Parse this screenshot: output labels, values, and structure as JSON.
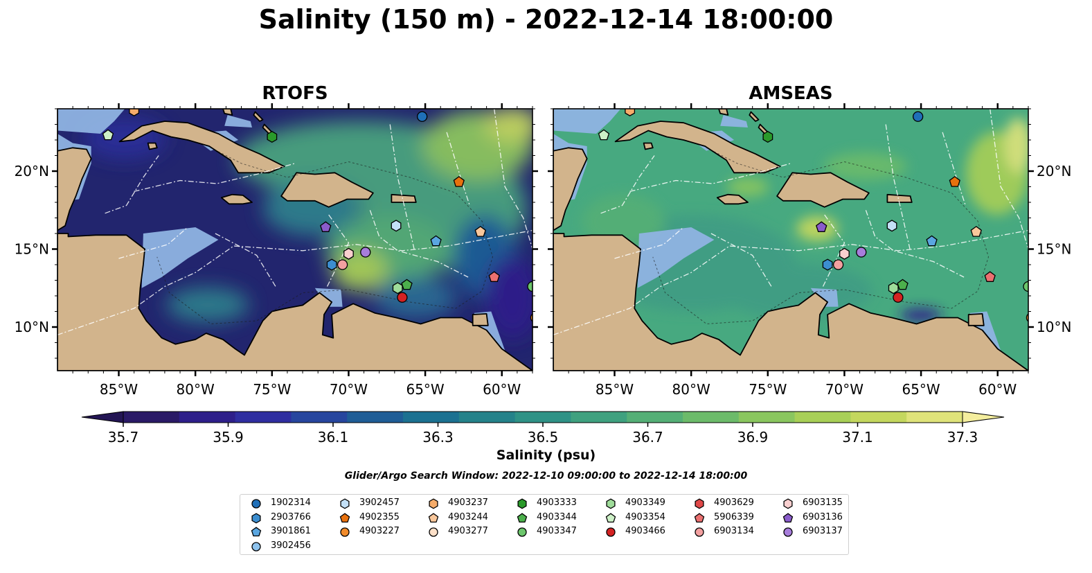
{
  "title": "Salinity (150 m) - 2022-12-14 18:00:00",
  "panels": [
    {
      "title": "RTOFS",
      "ocean_base": "#1e2d8a"
    },
    {
      "title": "AMSEAS",
      "ocean_base": "#4bb07f"
    }
  ],
  "x_ticks": [
    "85°W",
    "80°W",
    "75°W",
    "70°W",
    "65°W",
    "60°W"
  ],
  "y_ticks": [
    "20°N",
    "15°N",
    "10°N"
  ],
  "colorbar": {
    "label": "Salinity (psu)",
    "ticks": [
      "35.7",
      "35.9",
      "36.1",
      "36.3",
      "36.5",
      "36.7",
      "36.9",
      "37.1",
      "37.3"
    ],
    "colors": [
      "#2a1a66",
      "#2e1f8a",
      "#2f2ea0",
      "#27469e",
      "#1f5d96",
      "#1c7191",
      "#25828a",
      "#2f9286",
      "#3fa17f",
      "#55af76",
      "#6cbb6a",
      "#8ac65f",
      "#a8cf57",
      "#c4d75e",
      "#dfe37a"
    ],
    "extend_low": "#231554",
    "extend_high": "#f4ee9e"
  },
  "search_window": "Glider/Argo Search Window: 2022-12-10 09:00:00 to 2022-12-14 18:00:00",
  "legend": [
    {
      "label": "1902314",
      "shape": "circle",
      "color": "#1f6fb8"
    },
    {
      "label": "2903766",
      "shape": "hexagon",
      "color": "#3c8ed0"
    },
    {
      "label": "3901861",
      "shape": "pentagon",
      "color": "#5aa6e0"
    },
    {
      "label": "3902456",
      "shape": "circle",
      "color": "#8ec3ee"
    },
    {
      "label": "3902457",
      "shape": "hexagon",
      "color": "#c3e0f7"
    },
    {
      "label": "4902355",
      "shape": "pentagon",
      "color": "#e8710e"
    },
    {
      "label": "4903227",
      "shape": "circle",
      "color": "#f18b2b"
    },
    {
      "label": "4903237",
      "shape": "hexagon",
      "color": "#f6ac6a"
    },
    {
      "label": "4903244",
      "shape": "pentagon",
      "color": "#f9c79b"
    },
    {
      "label": "4903277",
      "shape": "circle",
      "color": "#fde0c8"
    },
    {
      "label": "4903333",
      "shape": "hexagon",
      "color": "#2a9a2a"
    },
    {
      "label": "4903344",
      "shape": "pentagon",
      "color": "#4cb04c"
    },
    {
      "label": "4903347",
      "shape": "circle",
      "color": "#6cc66c"
    },
    {
      "label": "4903349",
      "shape": "hexagon",
      "color": "#9fdc9a"
    },
    {
      "label": "4903354",
      "shape": "pentagon",
      "color": "#cdf0c7"
    },
    {
      "label": "4903466",
      "shape": "circle",
      "color": "#d42222"
    },
    {
      "label": "4903629",
      "shape": "hexagon",
      "color": "#e04848"
    },
    {
      "label": "5906339",
      "shape": "pentagon",
      "color": "#ea7070"
    },
    {
      "label": "6903134",
      "shape": "circle",
      "color": "#f3a0a0"
    },
    {
      "label": "6903135",
      "shape": "hexagon",
      "color": "#f9cfcf"
    },
    {
      "label": "6903136",
      "shape": "pentagon",
      "color": "#8a5ccb"
    },
    {
      "label": "6903137",
      "shape": "circle",
      "color": "#a77ddb"
    }
  ],
  "floats": [
    {
      "id": "1902314",
      "lon": -65.2,
      "lat": 23.5
    },
    {
      "id": "4903237",
      "lon": -84.0,
      "lat": 23.9
    },
    {
      "id": "4903354",
      "lon": -85.7,
      "lat": 22.3
    },
    {
      "id": "4903333",
      "lon": -75.0,
      "lat": 22.2
    },
    {
      "id": "4902355",
      "lon": -62.8,
      "lat": 19.3
    },
    {
      "id": "6903136",
      "lon": -71.5,
      "lat": 16.4
    },
    {
      "id": "3902457",
      "lon": -66.9,
      "lat": 16.5
    },
    {
      "id": "4903244",
      "lon": -61.4,
      "lat": 16.1
    },
    {
      "id": "3901861",
      "lon": -64.3,
      "lat": 15.5
    },
    {
      "id": "6903137",
      "lon": -68.9,
      "lat": 14.8
    },
    {
      "id": "6903135",
      "lon": -70.0,
      "lat": 14.7
    },
    {
      "id": "2903766",
      "lon": -71.1,
      "lat": 14.0
    },
    {
      "id": "6903134",
      "lon": -70.4,
      "lat": 14.0
    },
    {
      "id": "4903349",
      "lon": -66.8,
      "lat": 12.5
    },
    {
      "id": "4903344",
      "lon": -66.2,
      "lat": 12.7
    },
    {
      "id": "4903466",
      "lon": -66.5,
      "lat": 11.9
    },
    {
      "id": "5906339",
      "lon": -60.5,
      "lat": 13.2
    },
    {
      "id": "4903347",
      "lon": -58.0,
      "lat": 12.6
    },
    {
      "id": "4903227",
      "lon": -57.8,
      "lat": 10.6
    }
  ]
}
